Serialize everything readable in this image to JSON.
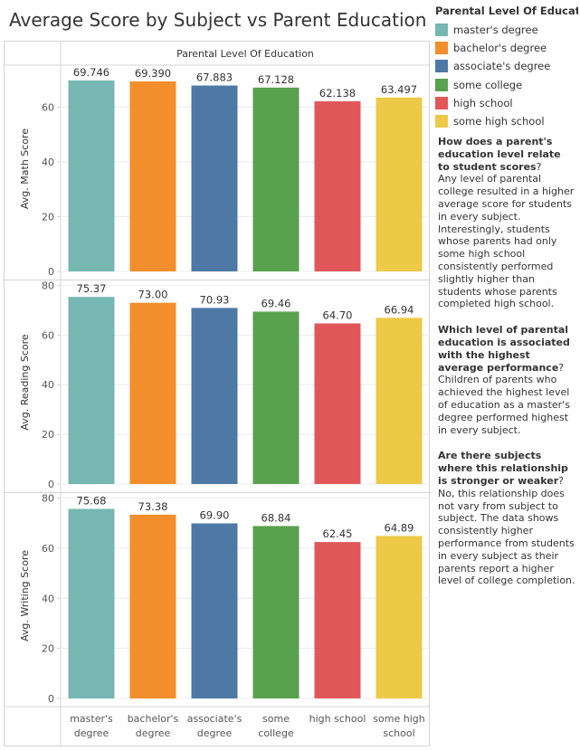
{
  "title": "Average Score by Subject vs Parent Education",
  "legend": {
    "title": "Parental Level Of Educati..",
    "items": [
      {
        "label": "master's degree",
        "color": "#76b7b2"
      },
      {
        "label": "bachelor's degree",
        "color": "#f28e2b"
      },
      {
        "label": "associate's degree",
        "color": "#4e79a7"
      },
      {
        "label": "some college",
        "color": "#59a14f"
      },
      {
        "label": "high school",
        "color": "#e15759"
      },
      {
        "label": "some high school",
        "color": "#edc948"
      }
    ]
  },
  "notes": [
    {
      "q": "How does a parent's education level relate to student scores",
      "mark": "?",
      "a": "Any level of parental college resulted in a higher average score for students in every subject. Interestingly, students whose parents had only some high school consistently performed slightly higher than students whose parents completed high school."
    },
    {
      "q": "Which level of parental education is associated with the highest average performance",
      "mark": "?",
      "a": "Children of parents who achieved the highest level of education as a master's degree performed highest in every subject."
    },
    {
      "q": "Are there subjects where this relationship is stronger or weaker",
      "mark": "?",
      "a": "No, this relationship does not vary from subject to subject. The data shows consistently higher performance from students in every subject as their parents report a higher level of college completion."
    }
  ],
  "chart_data": {
    "type": "bar",
    "column_header": "Parental Level Of Education",
    "categories": [
      "master's degree",
      "bachelor's degree",
      "associate's degree",
      "some college",
      "high school",
      "some high school"
    ],
    "category_labels": [
      [
        "master's",
        "degree"
      ],
      [
        "bachelor's",
        "degree"
      ],
      [
        "associate's",
        "degree"
      ],
      [
        "some",
        "college"
      ],
      [
        "high school"
      ],
      [
        "some high",
        "school"
      ]
    ],
    "colors": [
      "#76b7b2",
      "#f28e2b",
      "#4e79a7",
      "#59a14f",
      "#e15759",
      "#edc948"
    ],
    "panels": [
      {
        "ylabel": "Avg. Math Score",
        "values": [
          69.746,
          69.39,
          67.883,
          67.128,
          62.138,
          63.497
        ],
        "labels": [
          "69.746",
          "69.390",
          "67.883",
          "67.128",
          "62.138",
          "63.497"
        ],
        "ylim": [
          0,
          75
        ],
        "ticks": [
          0,
          20,
          40,
          60
        ]
      },
      {
        "ylabel": "Avg. Reading Score",
        "values": [
          75.37,
          73.0,
          70.93,
          69.46,
          64.7,
          66.94
        ],
        "labels": [
          "75.37",
          "73.00",
          "70.93",
          "69.46",
          "64.70",
          "66.94"
        ],
        "ylim": [
          0,
          82
        ],
        "ticks": [
          0,
          20,
          40,
          60,
          80
        ]
      },
      {
        "ylabel": "Avg. Writing Score",
        "values": [
          75.68,
          73.38,
          69.9,
          68.84,
          62.45,
          64.89
        ],
        "labels": [
          "75.68",
          "73.38",
          "69.90",
          "68.84",
          "62.45",
          "64.89"
        ],
        "ylim": [
          0,
          82
        ],
        "ticks": [
          0,
          20,
          40,
          60,
          80
        ]
      }
    ],
    "grid": true,
    "legend_position": "right"
  }
}
